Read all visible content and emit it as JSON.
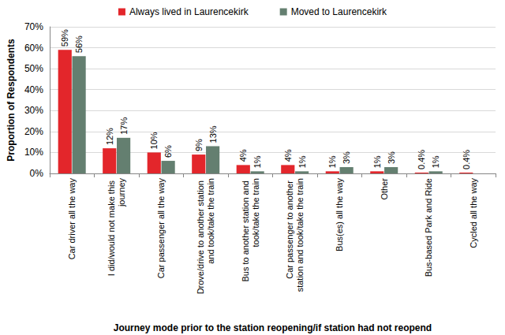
{
  "chart_data": {
    "type": "bar",
    "x_label": "Journey mode prior to the station reopening/if station had not reopend",
    "y_label": "Proportion of Respondents",
    "categories": [
      "Car driver all the way",
      "I did/would not make this journey",
      "Car passenger all the way",
      "Drove/drive to another station and took/take the train",
      "Bus to another station and took/take the train",
      "Car passenger to another station and took/take the train",
      "Bus(es) all the way",
      "Other",
      "Bus-based Park and Ride",
      "Cycled all the way"
    ],
    "series": [
      {
        "name": "Always lived in Laurencekirk",
        "color": "#e3262b",
        "values": [
          59,
          12,
          10,
          9,
          4,
          4,
          1,
          1,
          0.4,
          0.4
        ],
        "value_labels": [
          "59%",
          "12%",
          "10%",
          "9%",
          "4%",
          "4%",
          "1%",
          "1%",
          "0.4%",
          "0.4%"
        ]
      },
      {
        "name": "Moved to Laurencekirk",
        "color": "#647f70",
        "values": [
          56,
          17,
          6,
          13,
          1,
          1,
          3,
          3,
          1,
          null
        ],
        "value_labels": [
          "56%",
          "17%",
          "6%",
          "13%",
          "1%",
          "1%",
          "3%",
          "3%",
          "1%",
          null
        ]
      }
    ],
    "ylim": [
      0,
      70
    ],
    "yticks": [
      {
        "value": 0,
        "label": "0%"
      },
      {
        "value": 10,
        "label": "10%"
      },
      {
        "value": 20,
        "label": "20%"
      },
      {
        "value": 30,
        "label": "30%"
      },
      {
        "value": 40,
        "label": "40%"
      },
      {
        "value": 50,
        "label": "50%"
      },
      {
        "value": 60,
        "label": "60%"
      },
      {
        "value": 70,
        "label": "70%"
      }
    ],
    "grid": true,
    "legend": "top",
    "data_labels": true
  }
}
